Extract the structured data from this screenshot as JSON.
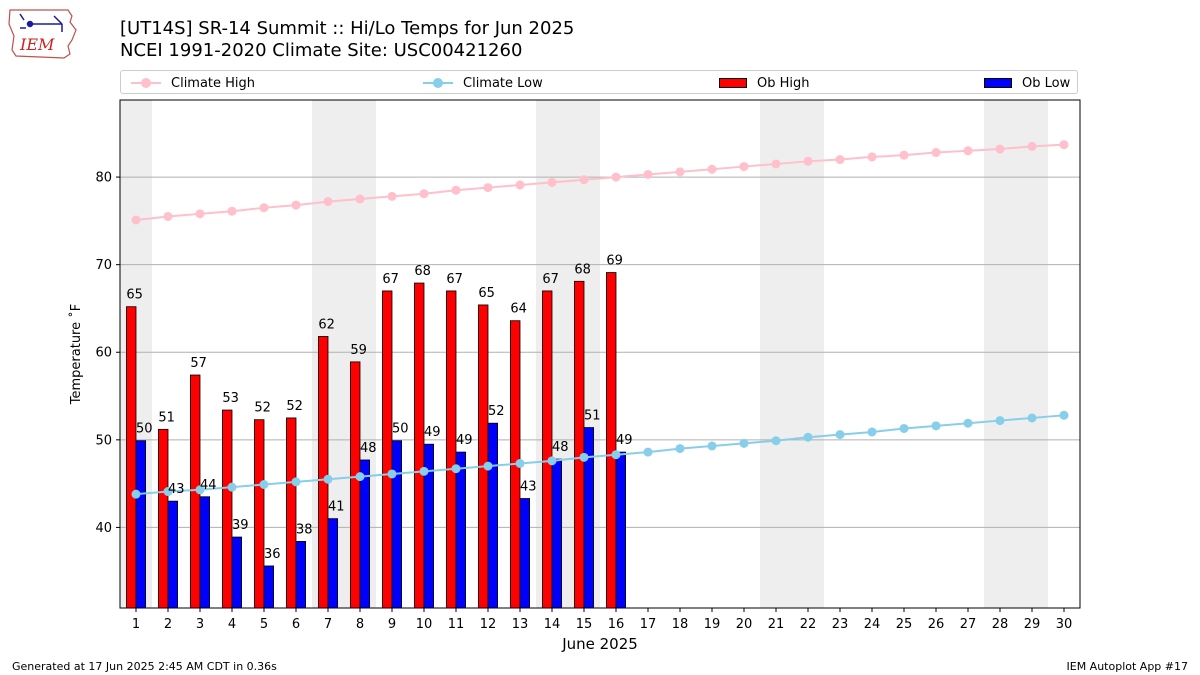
{
  "logo": {
    "text": "IEM",
    "colors": {
      "outline": "#c0504d",
      "text": "#cc2222",
      "icon": "#1a1aa0"
    }
  },
  "header": {
    "title": "[UT14S] SR-14 Summit  :: Hi/Lo Temps for Jun 2025",
    "subtitle": "NCEI 1991-2020 Climate Site: USC00421260"
  },
  "legend": {
    "placement": "top",
    "items": [
      {
        "label": "Climate High",
        "kind": "line",
        "color": "#ffc0cb"
      },
      {
        "label": "Climate Low",
        "kind": "line",
        "color": "#87ceeb"
      },
      {
        "label": "Ob High",
        "kind": "bar",
        "color": "#ff0000"
      },
      {
        "label": "Ob Low",
        "kind": "bar",
        "color": "#0000ff"
      }
    ]
  },
  "footer": {
    "left": "Generated at 17 Jun 2025 2:45 AM CDT in 0.36s",
    "right": "IEM Autoplot App #17"
  },
  "chart_data": {
    "type": "bar",
    "xlabel": "June 2025",
    "ylabel": "Temperature ˚F",
    "xlim": [
      0.5,
      30.5
    ],
    "ylim": [
      30.8,
      88.8
    ],
    "yticks": [
      40,
      50,
      60,
      70,
      80
    ],
    "grid": "y",
    "x": [
      1,
      2,
      3,
      4,
      5,
      6,
      7,
      8,
      9,
      10,
      11,
      12,
      13,
      14,
      15,
      16,
      17,
      18,
      19,
      20,
      21,
      22,
      23,
      24,
      25,
      26,
      27,
      28,
      29,
      30
    ],
    "weekend_shading": [
      [
        1,
        1
      ],
      [
        7,
        8
      ],
      [
        14,
        15
      ],
      [
        21,
        22
      ],
      [
        28,
        29
      ]
    ],
    "series": [
      {
        "name": "Ob High",
        "kind": "bar",
        "color": "#ff0000",
        "offset": -0.3,
        "x": [
          1,
          2,
          3,
          4,
          5,
          6,
          7,
          8,
          9,
          10,
          11,
          12,
          13,
          14,
          15,
          16
        ],
        "values": [
          65.2,
          51.2,
          57.4,
          53.4,
          52.3,
          52.5,
          61.8,
          58.9,
          67.0,
          67.9,
          67.0,
          65.4,
          63.6,
          67.0,
          68.1,
          69.1
        ],
        "labels": [
          "65",
          "51",
          "57",
          "53",
          "52",
          "52",
          "62",
          "59",
          "67",
          "68",
          "67",
          "65",
          "64",
          "67",
          "68",
          "69"
        ]
      },
      {
        "name": "Ob Low",
        "kind": "bar",
        "color": "#0000ff",
        "offset": 0,
        "x": [
          1,
          2,
          3,
          4,
          5,
          6,
          7,
          8,
          9,
          10,
          11,
          12,
          13,
          14,
          15,
          16
        ],
        "values": [
          49.9,
          43.0,
          43.5,
          38.9,
          35.6,
          38.4,
          41.0,
          47.7,
          49.9,
          49.5,
          48.6,
          51.9,
          43.3,
          47.8,
          51.4,
          48.6
        ],
        "labels": [
          "50",
          "43",
          "44",
          "39",
          "36",
          "38",
          "41",
          "48",
          "50",
          "49",
          "49",
          "52",
          "43",
          "48",
          "51",
          "49"
        ]
      },
      {
        "name": "Climate High",
        "kind": "line",
        "color": "#ffc0cb",
        "values": [
          75.1,
          75.5,
          75.8,
          76.1,
          76.5,
          76.8,
          77.2,
          77.5,
          77.8,
          78.1,
          78.5,
          78.8,
          79.1,
          79.4,
          79.7,
          80.0,
          80.3,
          80.6,
          80.9,
          81.2,
          81.5,
          81.8,
          82.0,
          82.3,
          82.5,
          82.8,
          83.0,
          83.2,
          83.5,
          83.7
        ]
      },
      {
        "name": "Climate Low",
        "kind": "line",
        "color": "#87ceeb",
        "values": [
          43.8,
          44.1,
          44.3,
          44.6,
          44.9,
          45.2,
          45.5,
          45.8,
          46.1,
          46.4,
          46.7,
          47.0,
          47.3,
          47.6,
          48.0,
          48.3,
          48.6,
          49.0,
          49.3,
          49.6,
          49.9,
          50.3,
          50.6,
          50.9,
          51.3,
          51.6,
          51.9,
          52.2,
          52.5,
          52.8
        ]
      }
    ]
  }
}
